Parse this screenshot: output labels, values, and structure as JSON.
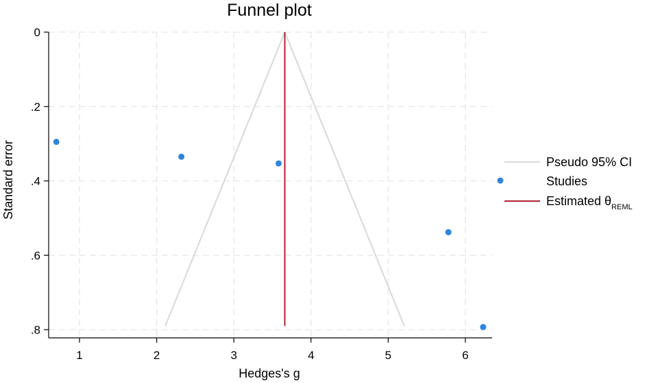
{
  "chart_data": {
    "type": "scatter",
    "title": "Funnel plot",
    "xlabel": "Hedges's g",
    "ylabel": "Standard error",
    "xlim": [
      0.6,
      6.4
    ],
    "ylim": [
      0,
      0.8
    ],
    "y_reversed": true,
    "x_ticks": [
      {
        "value": 1,
        "label": "1"
      },
      {
        "value": 2,
        "label": "2"
      },
      {
        "value": 3,
        "label": "3"
      },
      {
        "value": 4,
        "label": "4"
      },
      {
        "value": 5,
        "label": "5"
      },
      {
        "value": 6,
        "label": "6"
      }
    ],
    "y_ticks": [
      {
        "value": 0,
        "label": "0"
      },
      {
        "value": 0.2,
        "label": ".2"
      },
      {
        "value": 0.4,
        "label": ".4"
      },
      {
        "value": 0.6,
        "label": ".6"
      },
      {
        "value": 0.8,
        "label": ".8"
      }
    ],
    "grid": true,
    "legend_position": "right",
    "series": [
      {
        "name": "Studies",
        "kind": "points",
        "color": "#2e86de",
        "points": [
          {
            "x": 0.7,
            "y": 0.295
          },
          {
            "x": 2.32,
            "y": 0.335
          },
          {
            "x": 3.58,
            "y": 0.353
          },
          {
            "x": 5.78,
            "y": 0.538
          },
          {
            "x": 6.23,
            "y": 0.793
          }
        ]
      }
    ],
    "funnel": {
      "name": "Pseudo 95% CI",
      "color": "#d9d9d9",
      "center": 3.66,
      "apex_se": 0,
      "max_se": 0.79
    },
    "estimate": {
      "name": "Estimated θ",
      "subscript": "REML",
      "color": "#b22234",
      "x": 3.66,
      "se_range": [
        0,
        0.79
      ]
    }
  }
}
